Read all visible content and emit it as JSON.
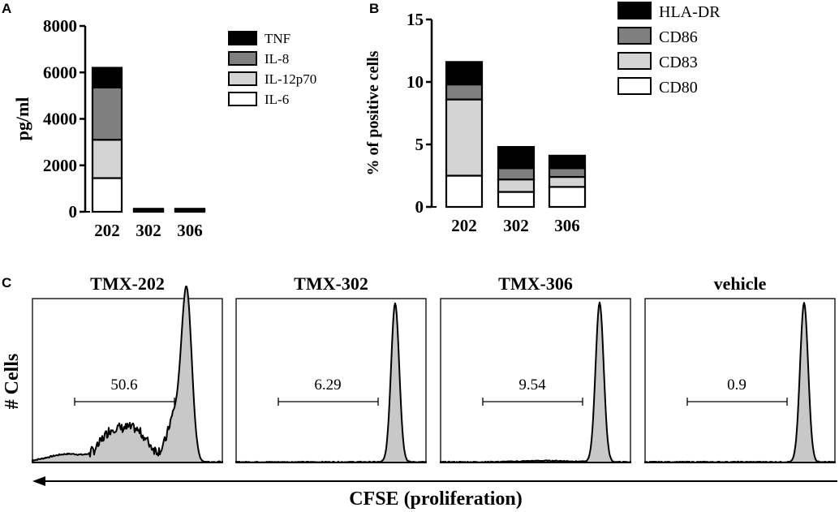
{
  "chart_data": [
    {
      "panel": "A",
      "type": "bar",
      "stacked": true,
      "categories": [
        "202",
        "302",
        "306"
      ],
      "ylabel": "pg/ml",
      "ylim": [
        0,
        8000
      ],
      "yticks": [
        "0",
        "2000",
        "4000",
        "6000",
        "8000"
      ],
      "series": [
        {
          "name": "IL-6",
          "color": "#ffffff",
          "values": [
            1450,
            40,
            40
          ]
        },
        {
          "name": "IL-12p70",
          "color": "#d4d4d4",
          "values": [
            1650,
            30,
            30
          ]
        },
        {
          "name": "IL-8",
          "color": "#7f7f7f",
          "values": [
            2250,
            30,
            30
          ]
        },
        {
          "name": "TNF",
          "color": "#000000",
          "values": [
            850,
            30,
            30
          ]
        }
      ],
      "legend": [
        "TNF",
        "IL-8",
        "IL-12p70",
        "IL-6"
      ],
      "legend_position": "right"
    },
    {
      "panel": "B",
      "type": "bar",
      "stacked": true,
      "categories": [
        "202",
        "302",
        "306"
      ],
      "ylabel": "% of positive cells",
      "ylim": [
        0,
        15
      ],
      "yticks": [
        "0",
        "5",
        "10",
        "15"
      ],
      "series": [
        {
          "name": "CD80",
          "color": "#ffffff",
          "values": [
            2.5,
            1.2,
            1.6
          ]
        },
        {
          "name": "CD83",
          "color": "#d4d4d4",
          "values": [
            6.1,
            1.0,
            0.8
          ]
        },
        {
          "name": "CD86",
          "color": "#7f7f7f",
          "values": [
            1.2,
            0.9,
            0.7
          ]
        },
        {
          "name": "HLA-DR",
          "color": "#000000",
          "values": [
            1.8,
            1.7,
            1.0
          ]
        }
      ],
      "legend": [
        "HLA-DR",
        "CD86",
        "CD83",
        "CD80"
      ],
      "legend_position": "right"
    },
    {
      "panel": "C",
      "type": "area",
      "subtype": "histogram",
      "ylabel": "# Cells",
      "xlabel": "CFSE (proliferation)",
      "histograms": [
        {
          "title": "TMX-202",
          "gate_label": "50.6"
        },
        {
          "title": "TMX-302",
          "gate_label": "6.29"
        },
        {
          "title": "TMX-306",
          "gate_label": "9.54"
        },
        {
          "title": "vehicle",
          "gate_label": "0.9"
        }
      ]
    }
  ],
  "panel_labels": {
    "a": "A",
    "b": "B",
    "c": "C"
  }
}
